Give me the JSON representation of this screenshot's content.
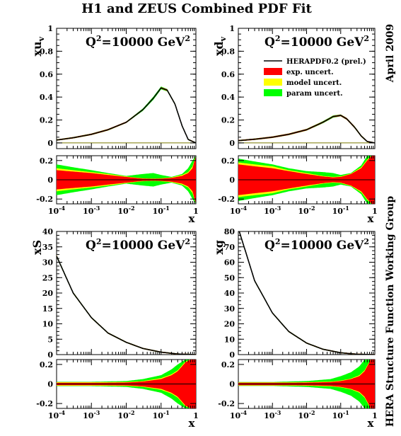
{
  "title": "H1 and ZEUS Combined PDF Fit",
  "side_label_top": "April 2009",
  "side_label_bottom": "HERA Structure Function Working Group",
  "legend": [
    {
      "label": "HERAPDF0.2 (prel.)",
      "color": "#000000",
      "kind": "line"
    },
    {
      "label": "exp. uncert.",
      "color": "#ff0000",
      "kind": "box"
    },
    {
      "label": "model uncert.",
      "color": "#ffff00",
      "kind": "box"
    },
    {
      "label": "param uncert.",
      "color": "#00ff00",
      "kind": "box"
    }
  ],
  "colors": {
    "exp": "#ff0000",
    "model": "#ffff00",
    "param": "#00ff00",
    "central": "#000000"
  },
  "chart_data": [
    {
      "id": "xuv",
      "type": "area",
      "ylabel_main": "xu",
      "ylabel_sub": "v",
      "annotation": "Q",
      "annotation_sup": "2",
      "annotation_rest": "=10000 GeV",
      "annotation_rest_sup": "2",
      "xlabel": "x",
      "xscale": "log",
      "xlim": [
        0.0001,
        1
      ],
      "xticks": [
        {
          "base": "10",
          "exp": "-4"
        },
        {
          "base": "10",
          "exp": "-3"
        },
        {
          "base": "10",
          "exp": "-2"
        },
        {
          "base": "10",
          "exp": "-1"
        },
        {
          "base": "1",
          "exp": ""
        }
      ],
      "ylim": [
        -0.05,
        1
      ],
      "yticks": [
        "0",
        "0.2",
        "0.4",
        "0.6",
        "0.8",
        "1"
      ],
      "ratio_ylim": [
        -0.25,
        0.25
      ],
      "ratio_yticks": [
        "-0.2",
        "0",
        "0.2"
      ],
      "central": {
        "x": [
          0.0001,
          0.0003,
          0.001,
          0.003,
          0.01,
          0.03,
          0.06,
          0.1,
          0.15,
          0.25,
          0.4,
          0.6,
          1
        ],
        "y": [
          0.025,
          0.045,
          0.075,
          0.115,
          0.18,
          0.29,
          0.39,
          0.48,
          0.46,
          0.34,
          0.15,
          0.03,
          0
        ]
      },
      "ratio_bands": {
        "x": [
          0.0001,
          0.0003,
          0.001,
          0.003,
          0.01,
          0.03,
          0.06,
          0.1,
          0.2,
          0.4,
          0.6,
          0.8,
          1
        ],
        "exp": [
          0.1,
          0.085,
          0.07,
          0.05,
          0.03,
          0.012,
          0.01,
          0.012,
          0.02,
          0.04,
          0.07,
          0.12,
          0.25
        ],
        "model": [
          0.12,
          0.1,
          0.08,
          0.06,
          0.035,
          0.015,
          0.012,
          0.015,
          0.025,
          0.05,
          0.08,
          0.14,
          0.25
        ],
        "param": [
          0.16,
          0.13,
          0.1,
          0.07,
          0.04,
          0.06,
          0.07,
          0.05,
          0.03,
          0.06,
          0.12,
          0.2,
          0.25
        ]
      }
    },
    {
      "id": "xdv",
      "type": "area",
      "ylabel_main": "xd",
      "ylabel_sub": "v",
      "annotation": "Q",
      "annotation_sup": "2",
      "annotation_rest": "=10000 GeV",
      "annotation_rest_sup": "2",
      "xlabel": "x",
      "xscale": "log",
      "xlim": [
        0.0001,
        1
      ],
      "xticks": [
        {
          "base": "10",
          "exp": "-4"
        },
        {
          "base": "10",
          "exp": "-3"
        },
        {
          "base": "10",
          "exp": "-2"
        },
        {
          "base": "10",
          "exp": "-1"
        },
        {
          "base": "1",
          "exp": ""
        }
      ],
      "ylim": [
        -0.05,
        1
      ],
      "yticks": [
        "0",
        "0.2",
        "0.4",
        "0.6",
        "0.8",
        "1"
      ],
      "ratio_ylim": [
        -0.25,
        0.25
      ],
      "ratio_yticks": [
        "-0.2",
        "0",
        "0.2"
      ],
      "central": {
        "x": [
          0.0001,
          0.0003,
          0.001,
          0.003,
          0.01,
          0.03,
          0.06,
          0.1,
          0.15,
          0.25,
          0.4,
          0.6,
          1
        ],
        "y": [
          0.02,
          0.032,
          0.05,
          0.075,
          0.115,
          0.18,
          0.23,
          0.24,
          0.21,
          0.14,
          0.06,
          0.012,
          0
        ]
      },
      "ratio_bands": {
        "x": [
          0.0001,
          0.0003,
          0.001,
          0.003,
          0.01,
          0.03,
          0.06,
          0.1,
          0.2,
          0.4,
          0.6,
          0.8,
          1
        ],
        "exp": [
          0.16,
          0.14,
          0.12,
          0.09,
          0.06,
          0.035,
          0.025,
          0.03,
          0.06,
          0.12,
          0.2,
          0.25,
          0.25
        ],
        "model": [
          0.18,
          0.16,
          0.14,
          0.1,
          0.07,
          0.04,
          0.03,
          0.035,
          0.065,
          0.13,
          0.21,
          0.25,
          0.25
        ],
        "param": [
          0.22,
          0.19,
          0.16,
          0.12,
          0.09,
          0.08,
          0.07,
          0.05,
          0.07,
          0.15,
          0.25,
          0.25,
          0.25
        ]
      }
    },
    {
      "id": "xS",
      "type": "area",
      "ylabel_main": "xS",
      "ylabel_sub": "",
      "annotation": "Q",
      "annotation_sup": "2",
      "annotation_rest": "=10000 GeV",
      "annotation_rest_sup": "2",
      "xlabel": "x",
      "xscale": "log",
      "xlim": [
        0.0001,
        1
      ],
      "xticks": [
        {
          "base": "10",
          "exp": "-4"
        },
        {
          "base": "10",
          "exp": "-3"
        },
        {
          "base": "10",
          "exp": "-2"
        },
        {
          "base": "10",
          "exp": "-1"
        },
        {
          "base": "1",
          "exp": ""
        }
      ],
      "ylim": [
        0,
        40
      ],
      "yticks": [
        "0",
        "5",
        "10",
        "15",
        "20",
        "25",
        "30",
        "35",
        "40"
      ],
      "ratio_ylim": [
        -0.25,
        0.25
      ],
      "ratio_yticks": [
        "-0.2",
        "0",
        "0.2"
      ],
      "central": {
        "x": [
          0.0001,
          0.0003,
          0.001,
          0.003,
          0.01,
          0.03,
          0.1,
          0.3,
          1
        ],
        "y": [
          32,
          20,
          12,
          7,
          4,
          2,
          0.8,
          0.2,
          0
        ]
      },
      "ratio_bands": {
        "x": [
          0.0001,
          0.001,
          0.01,
          0.03,
          0.1,
          0.2,
          0.3,
          0.5,
          0.7,
          1
        ],
        "exp": [
          0.012,
          0.012,
          0.015,
          0.025,
          0.05,
          0.09,
          0.13,
          0.22,
          0.25,
          0.25
        ],
        "model": [
          0.018,
          0.018,
          0.02,
          0.03,
          0.06,
          0.1,
          0.14,
          0.23,
          0.25,
          0.25
        ],
        "param": [
          0.022,
          0.022,
          0.03,
          0.05,
          0.09,
          0.15,
          0.2,
          0.25,
          0.25,
          0.25
        ]
      }
    },
    {
      "id": "xg",
      "type": "area",
      "ylabel_main": "xg",
      "ylabel_sub": "",
      "annotation": "Q",
      "annotation_sup": "2",
      "annotation_rest": "=10000 GeV",
      "annotation_rest_sup": "2",
      "xlabel": "x",
      "xscale": "log",
      "xlim": [
        0.0001,
        1
      ],
      "xticks": [
        {
          "base": "10",
          "exp": "-4"
        },
        {
          "base": "10",
          "exp": "-3"
        },
        {
          "base": "10",
          "exp": "-2"
        },
        {
          "base": "10",
          "exp": "-1"
        },
        {
          "base": "1",
          "exp": ""
        }
      ],
      "ylim": [
        0,
        80
      ],
      "yticks": [
        "0",
        "10",
        "20",
        "30",
        "40",
        "50",
        "60",
        "70",
        "80"
      ],
      "ratio_ylim": [
        -0.25,
        0.25
      ],
      "ratio_yticks": [
        "-0.2",
        "0",
        "0.2"
      ],
      "central": {
        "x": [
          0.0001,
          0.0003,
          0.001,
          0.003,
          0.01,
          0.03,
          0.1,
          0.3,
          1
        ],
        "y": [
          82,
          48,
          27,
          15,
          7.5,
          3.5,
          1.2,
          0.25,
          0
        ]
      },
      "ratio_bands": {
        "x": [
          0.0001,
          0.001,
          0.01,
          0.05,
          0.1,
          0.2,
          0.35,
          0.5,
          0.6,
          0.75,
          1
        ],
        "exp": [
          0.012,
          0.012,
          0.014,
          0.02,
          0.03,
          0.05,
          0.08,
          0.13,
          0.18,
          0.25,
          0.25
        ],
        "model": [
          0.016,
          0.016,
          0.018,
          0.025,
          0.035,
          0.055,
          0.09,
          0.14,
          0.19,
          0.25,
          0.25
        ],
        "param": [
          0.02,
          0.02,
          0.03,
          0.05,
          0.08,
          0.12,
          0.18,
          0.25,
          0.25,
          0.25,
          0.25
        ]
      }
    }
  ]
}
